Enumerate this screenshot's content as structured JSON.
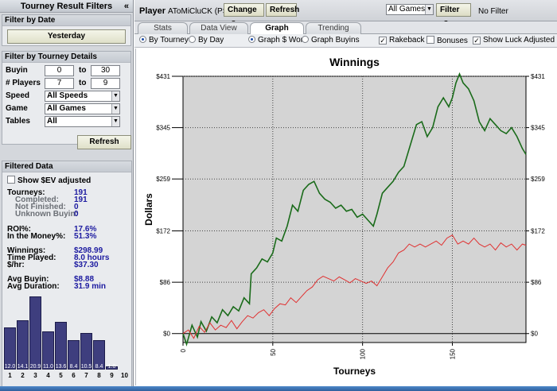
{
  "left_panel": {
    "title": "Tourney Result Filters",
    "collapse_icon": "«",
    "filter_by_date": {
      "title": "Filter by Date",
      "date_button": "Yesterday"
    },
    "filter_by_details": {
      "title": "Filter by Tourney Details",
      "buyin": {
        "label": "Buyin",
        "min": "0",
        "to": "to",
        "max": "30"
      },
      "players": {
        "label": "# Players",
        "min": "7",
        "to": "to",
        "max": "9"
      },
      "speed": {
        "label": "Speed",
        "value": "All Speeds"
      },
      "game": {
        "label": "Game",
        "value": "All Games"
      },
      "tables": {
        "label": "Tables",
        "value": "All"
      },
      "refresh_button": "Refresh"
    },
    "filtered_data": {
      "title": "Filtered Data",
      "show_ev_label": "Show $EV adjusted",
      "stats": {
        "tourneys": {
          "label": "Tourneys:",
          "value": "191"
        },
        "completed": {
          "label": "Completed:",
          "value": "191"
        },
        "not_finished": {
          "label": "Not Finished:",
          "value": "0"
        },
        "unknown_buyin": {
          "label": "Unknown Buyin:",
          "value": "0"
        },
        "roi": {
          "label": "ROI%:",
          "value": "17.6%"
        },
        "itm": {
          "label": "In the Money%:",
          "value": "51.3%"
        },
        "winnings": {
          "label": "Winnings:",
          "value": "$298.99"
        },
        "time_played": {
          "label": "Time Played:",
          "value": "8.0 hours"
        },
        "per_hour": {
          "label": "$/hr:",
          "value": "$37.30"
        },
        "avg_buyin": {
          "label": "Avg Buyin:",
          "value": "$8.88"
        },
        "avg_duration": {
          "label": "Avg Duration:",
          "value": "31.9 min"
        }
      },
      "histogram": {
        "bars": [
          {
            "x": "1",
            "label": "12.0",
            "value": 12.0
          },
          {
            "x": "2",
            "label": "14.1",
            "value": 14.1
          },
          {
            "x": "3",
            "label": "20.9",
            "value": 20.9
          },
          {
            "x": "4",
            "label": "11.0",
            "value": 11.0
          },
          {
            "x": "5",
            "label": "13.6",
            "value": 13.6
          },
          {
            "x": "6",
            "label": "8.4",
            "value": 8.4
          },
          {
            "x": "7",
            "label": "10.5",
            "value": 10.5
          },
          {
            "x": "8",
            "label": "8.4",
            "value": 8.4
          },
          {
            "x": "9",
            "label": "1.0",
            "value": 1.0
          },
          {
            "x": "10",
            "label": "",
            "value": 0
          }
        ]
      }
    }
  },
  "topbar": {
    "player_label": "Player",
    "player_name": "AToMiCluCK (PS)",
    "change_button": "Change",
    "refresh_button": "Refresh",
    "games_select": "All Games",
    "filter_button": "Filter",
    "filter_status": "No Filter"
  },
  "tabs": [
    {
      "label": "Stats"
    },
    {
      "label": "Data View"
    },
    {
      "label": "Graph"
    },
    {
      "label": "Trending"
    }
  ],
  "options": {
    "by_tourney": "By Tourney",
    "by_day": "By Day",
    "graph_won": "Graph $ Won",
    "graph_buyins": "Graph Buyins",
    "rakeback": "Rakeback",
    "bonuses": "Bonuses",
    "show_luck": "Show Luck Adjusted Winn"
  },
  "colors": {
    "winnings_line": "#1a6b1a",
    "luck_line": "#e03030",
    "plot_bg": "#d4d4d4",
    "histogram_bar": "#3e3e7e"
  },
  "chart_data": {
    "type": "line",
    "title": "Winnings",
    "xlabel": "Tourneys",
    "ylabel": "Dollars",
    "xlim": [
      0,
      191
    ],
    "ylim": [
      -15,
      431
    ],
    "x_ticks": [
      0,
      50,
      100,
      150
    ],
    "y_ticks": [
      "$0",
      "$86",
      "$172",
      "$259",
      "$345",
      "$431"
    ],
    "y_tick_values": [
      0,
      86,
      172,
      259,
      345,
      431
    ],
    "grid": true,
    "series": [
      {
        "color": "#1a6b1a",
        "points": [
          [
            0,
            0
          ],
          [
            2,
            -18
          ],
          [
            5,
            14
          ],
          [
            8,
            -6
          ],
          [
            10,
            20
          ],
          [
            13,
            4
          ],
          [
            16,
            28
          ],
          [
            19,
            18
          ],
          [
            22,
            40
          ],
          [
            25,
            30
          ],
          [
            28,
            45
          ],
          [
            31,
            38
          ],
          [
            34,
            60
          ],
          [
            37,
            50
          ],
          [
            38,
            100
          ],
          [
            41,
            110
          ],
          [
            44,
            125
          ],
          [
            47,
            120
          ],
          [
            50,
            135
          ],
          [
            52,
            160
          ],
          [
            55,
            155
          ],
          [
            58,
            180
          ],
          [
            61,
            215
          ],
          [
            64,
            205
          ],
          [
            67,
            240
          ],
          [
            70,
            250
          ],
          [
            73,
            255
          ],
          [
            76,
            235
          ],
          [
            79,
            225
          ],
          [
            82,
            220
          ],
          [
            85,
            210
          ],
          [
            88,
            215
          ],
          [
            91,
            205
          ],
          [
            94,
            208
          ],
          [
            97,
            195
          ],
          [
            100,
            200
          ],
          [
            103,
            190
          ],
          [
            106,
            180
          ],
          [
            108,
            200
          ],
          [
            111,
            235
          ],
          [
            114,
            245
          ],
          [
            117,
            255
          ],
          [
            120,
            270
          ],
          [
            123,
            280
          ],
          [
            125,
            300
          ],
          [
            127,
            320
          ],
          [
            130,
            350
          ],
          [
            133,
            355
          ],
          [
            136,
            330
          ],
          [
            139,
            345
          ],
          [
            142,
            380
          ],
          [
            145,
            395
          ],
          [
            148,
            380
          ],
          [
            150,
            395
          ],
          [
            152,
            420
          ],
          [
            154,
            435
          ],
          [
            156,
            420
          ],
          [
            159,
            410
          ],
          [
            162,
            390
          ],
          [
            165,
            355
          ],
          [
            168,
            340
          ],
          [
            171,
            360
          ],
          [
            174,
            350
          ],
          [
            177,
            340
          ],
          [
            180,
            335
          ],
          [
            183,
            345
          ],
          [
            186,
            330
          ],
          [
            189,
            310
          ],
          [
            191,
            300
          ]
        ]
      },
      {
        "color": "#e03030",
        "points": [
          [
            0,
            0
          ],
          [
            3,
            6
          ],
          [
            6,
            -8
          ],
          [
            9,
            12
          ],
          [
            12,
            2
          ],
          [
            15,
            18
          ],
          [
            18,
            6
          ],
          [
            21,
            14
          ],
          [
            24,
            10
          ],
          [
            27,
            22
          ],
          [
            30,
            8
          ],
          [
            33,
            20
          ],
          [
            36,
            30
          ],
          [
            39,
            26
          ],
          [
            42,
            35
          ],
          [
            45,
            40
          ],
          [
            48,
            30
          ],
          [
            51,
            42
          ],
          [
            54,
            50
          ],
          [
            57,
            48
          ],
          [
            60,
            60
          ],
          [
            63,
            52
          ],
          [
            66,
            62
          ],
          [
            69,
            72
          ],
          [
            72,
            78
          ],
          [
            75,
            90
          ],
          [
            78,
            96
          ],
          [
            81,
            92
          ],
          [
            84,
            88
          ],
          [
            87,
            95
          ],
          [
            90,
            90
          ],
          [
            93,
            85
          ],
          [
            96,
            92
          ],
          [
            99,
            88
          ],
          [
            102,
            84
          ],
          [
            105,
            88
          ],
          [
            108,
            80
          ],
          [
            111,
            95
          ],
          [
            114,
            110
          ],
          [
            117,
            120
          ],
          [
            120,
            135
          ],
          [
            123,
            140
          ],
          [
            126,
            150
          ],
          [
            129,
            145
          ],
          [
            132,
            150
          ],
          [
            135,
            145
          ],
          [
            138,
            150
          ],
          [
            141,
            155
          ],
          [
            144,
            148
          ],
          [
            147,
            160
          ],
          [
            150,
            165
          ],
          [
            153,
            150
          ],
          [
            156,
            155
          ],
          [
            159,
            150
          ],
          [
            162,
            160
          ],
          [
            165,
            150
          ],
          [
            168,
            145
          ],
          [
            171,
            150
          ],
          [
            174,
            140
          ],
          [
            177,
            152
          ],
          [
            180,
            145
          ],
          [
            183,
            150
          ],
          [
            186,
            140
          ],
          [
            189,
            150
          ],
          [
            191,
            148
          ]
        ]
      }
    ]
  }
}
